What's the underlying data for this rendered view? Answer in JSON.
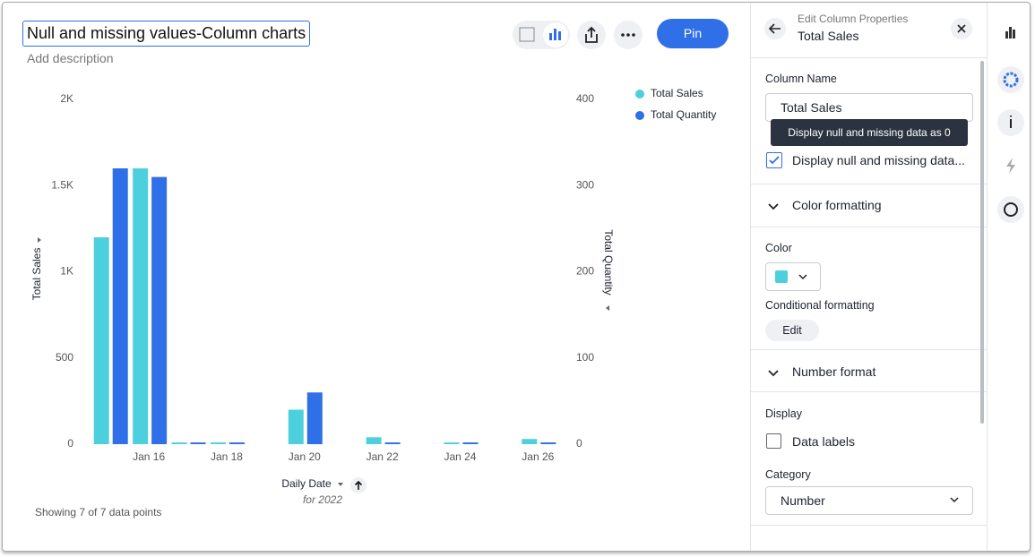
{
  "header": {
    "title": "Null and missing values-Column charts",
    "description": "Add description",
    "pin": "Pin"
  },
  "chart_data": {
    "type": "bar",
    "categories": [
      null,
      "Jan 16",
      null,
      "Jan 18",
      null,
      "Jan 20",
      null,
      "Jan 22",
      null,
      "Jan 24",
      null,
      "Jan 26"
    ],
    "series": [
      {
        "name": "Total Sales",
        "color": "#4dd0dd",
        "values": [
          1200,
          1600,
          10,
          10,
          null,
          200,
          null,
          40,
          null,
          10,
          null,
          30
        ]
      },
      {
        "name": "Total Quantity",
        "color": "#2f6fe8",
        "axis": "y2",
        "values": [
          320,
          310,
          2,
          2,
          null,
          60,
          null,
          2,
          null,
          2,
          null,
          2
        ]
      }
    ],
    "ylabel": "Total Sales",
    "y2label": "Total Quantity",
    "xlabel": "Daily Date",
    "xsublabel": "for 2022",
    "ylim": [
      0,
      2000
    ],
    "yticks": [
      0,
      500,
      {
        "value": 1000,
        "label": "1K"
      },
      {
        "value": 1500,
        "label": "1.5K"
      },
      {
        "value": 2000,
        "label": "2K"
      }
    ],
    "y2lim": [
      0,
      400
    ],
    "y2ticks": [
      0,
      100,
      200,
      300,
      400
    ]
  },
  "footer": "Showing 7 of 7 data points",
  "panel": {
    "subtitle": "Edit Column Properties",
    "title": "Total Sales",
    "column_name_label": "Column Name",
    "column_name_value": "Total Sales",
    "tooltip": "Display null and missing data as 0",
    "checkbox": "Display null and missing data...",
    "color_section": "Color formatting",
    "color_label": "Color",
    "conditional_label": "Conditional formatting",
    "edit": "Edit",
    "number_section": "Number format",
    "display_label": "Display",
    "data_labels": "Data labels",
    "category_label": "Category",
    "category_value": "Number"
  }
}
